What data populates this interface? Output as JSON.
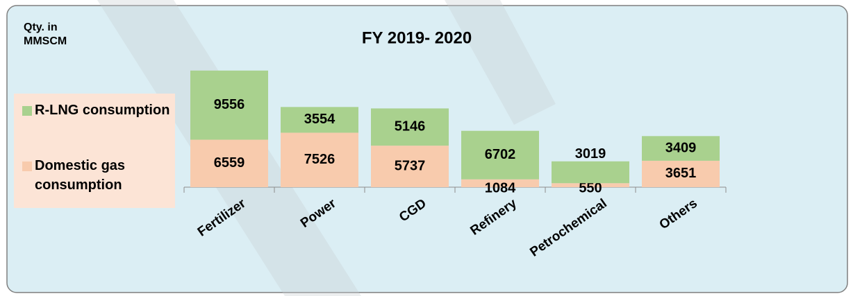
{
  "chart_data": {
    "type": "stacked_bar",
    "title": "FY 2019- 2020",
    "y_label": "Qty. in MMSCM",
    "categories": [
      "Fertilizer",
      "Power",
      "CGD",
      "Refinery",
      "Petrochemical",
      "Others"
    ],
    "series": [
      {
        "name": "Domestic gas consumption",
        "color": "#f8cbad",
        "values": [
          6559,
          7526,
          5737,
          1084,
          550,
          3651
        ]
      },
      {
        "name": "R-LNG consumption",
        "color": "#a9d18e",
        "values": [
          9556,
          3554,
          5146,
          6702,
          3019,
          3409
        ]
      }
    ],
    "ylim": [
      0,
      16000
    ],
    "legend": "left"
  }
}
